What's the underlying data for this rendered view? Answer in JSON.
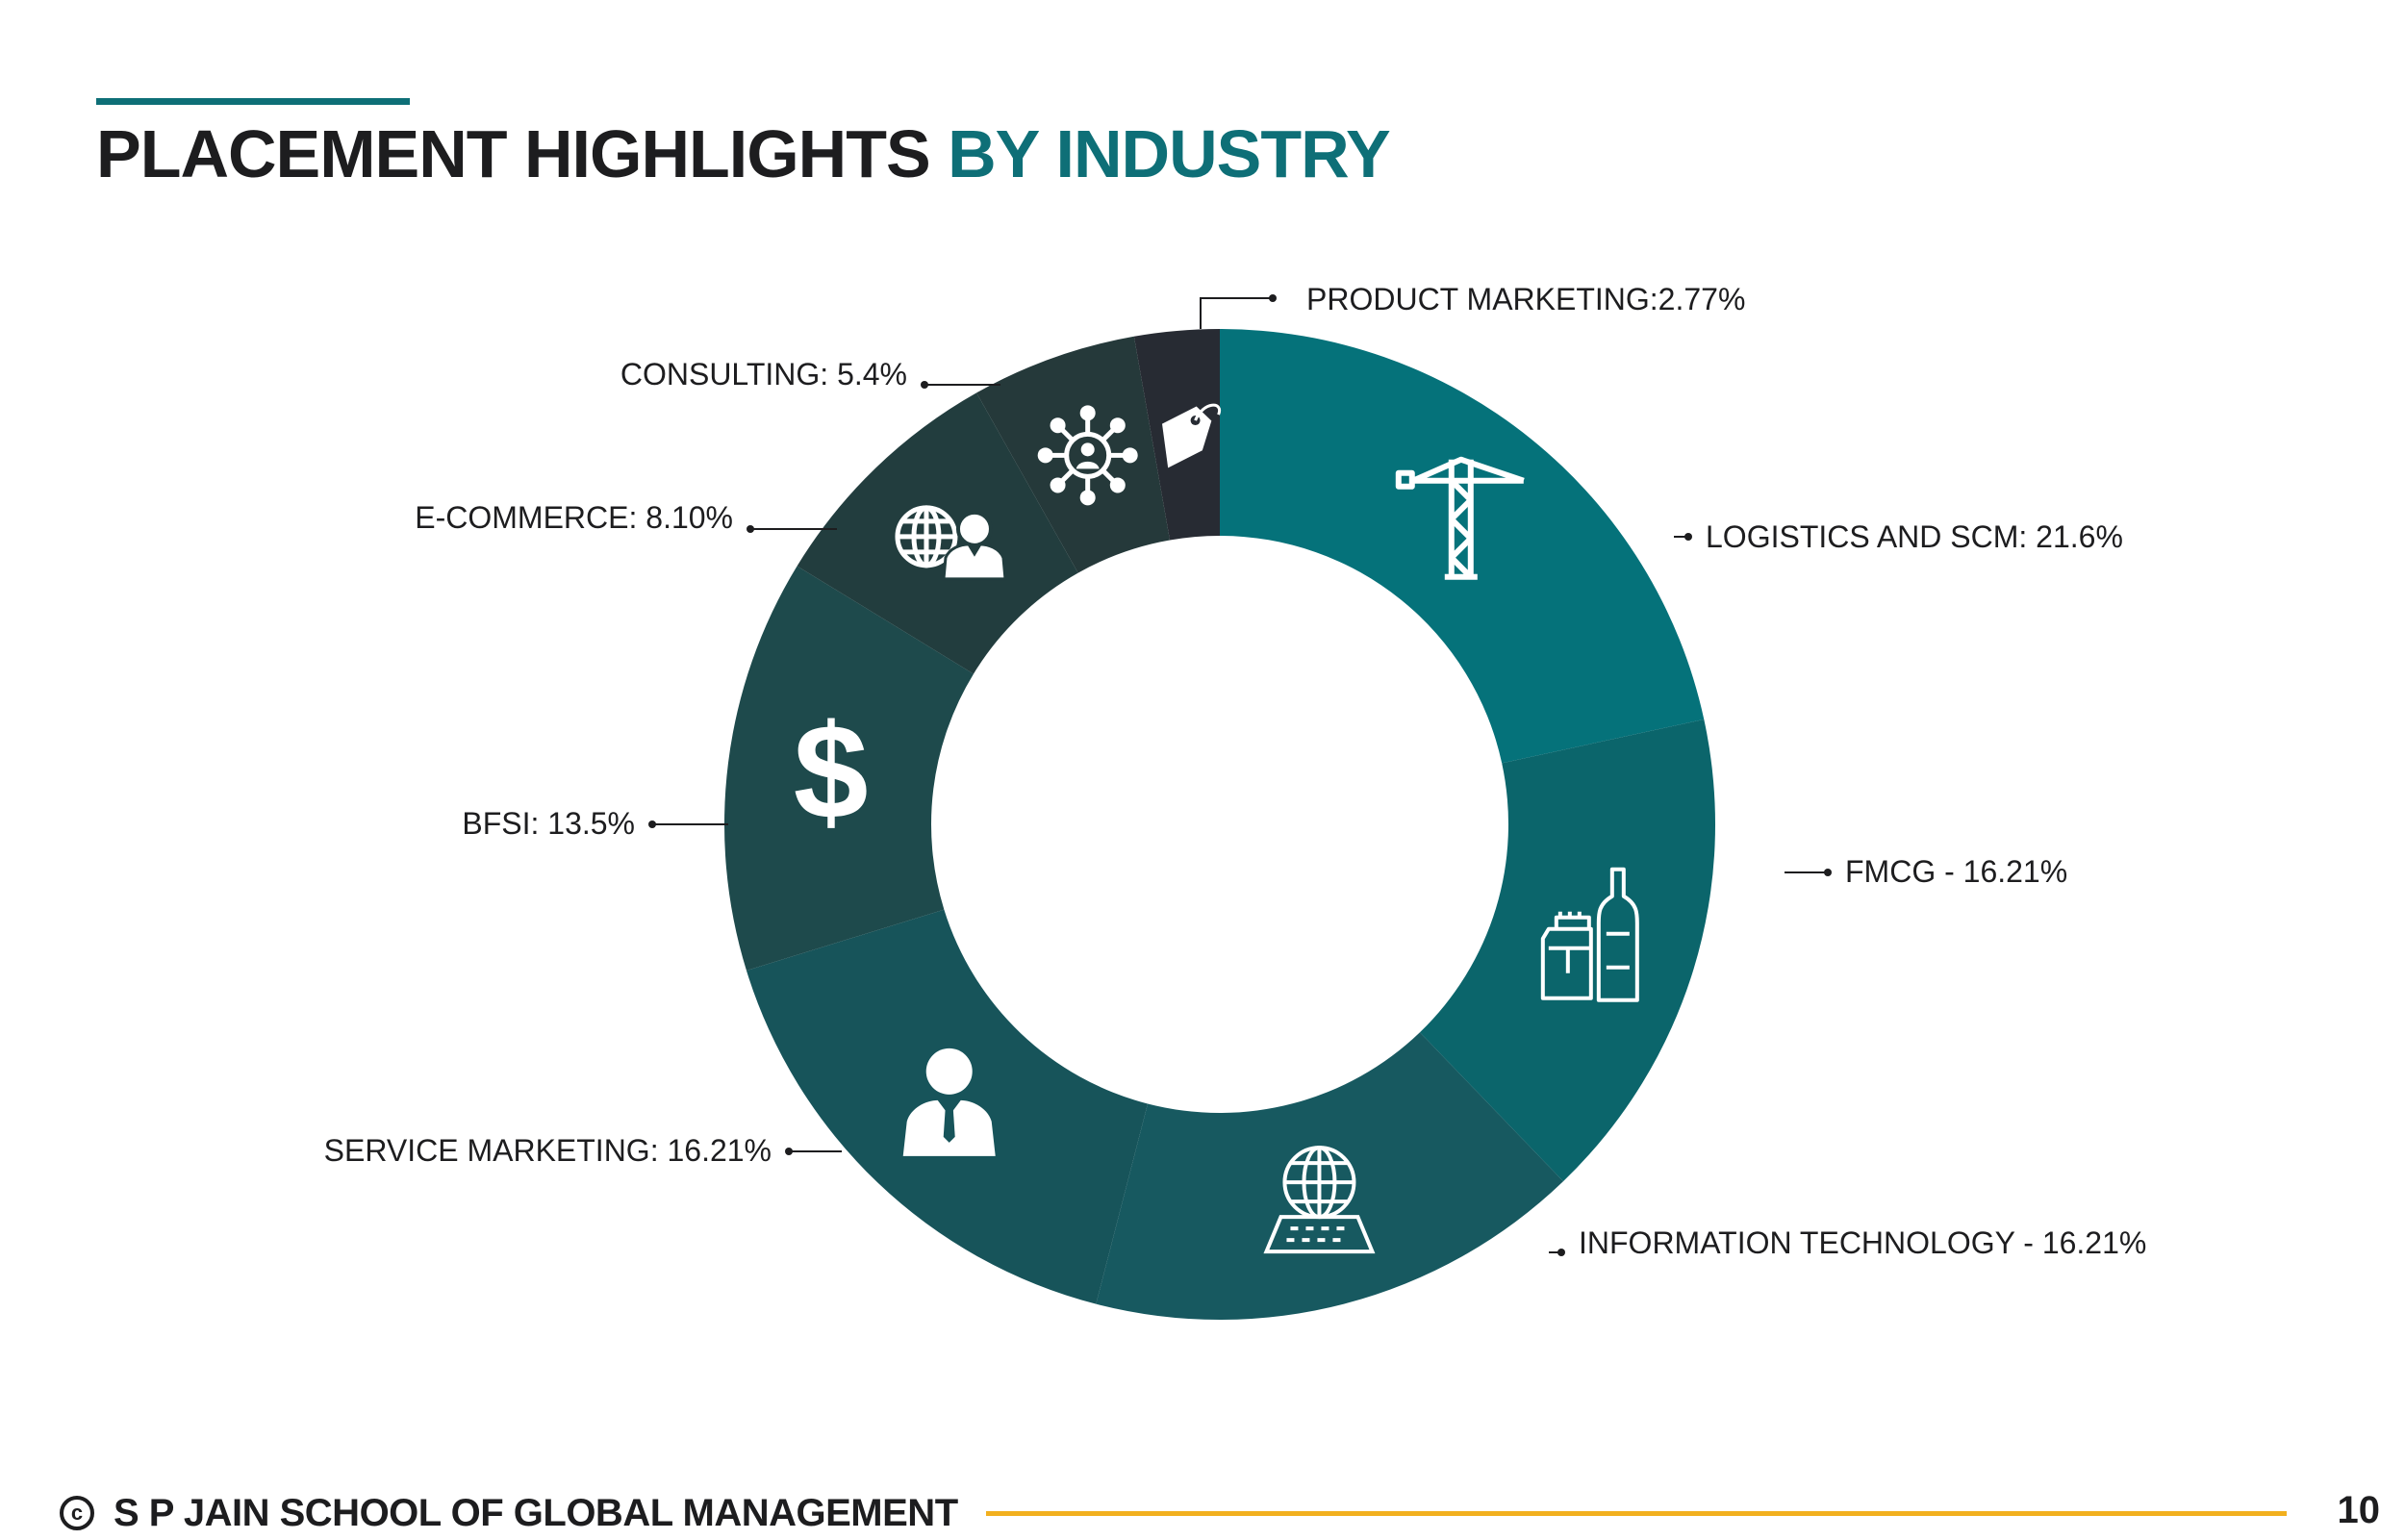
{
  "header": {
    "title_main": "PLACEMENT HIGHLIGHTS",
    "title_accent": "BY INDUSTRY"
  },
  "colors": {
    "accent": "#0e6f77",
    "footer_rule": "#f2b01e",
    "text": "#1d1d1f"
  },
  "chart_data": {
    "type": "pie",
    "style": "donut",
    "title": "",
    "slices": [
      {
        "label": "LOGISTICS AND SCM: 21.6%",
        "value": 21.6,
        "color": "#05727a",
        "icon": "crane-icon"
      },
      {
        "label": "FMCG - 16.21%",
        "value": 16.21,
        "color": "#0b656b",
        "icon": "grocery-bottle-icon"
      },
      {
        "label": "INFORMATION TECHNOLOGY - 16.21%",
        "value": 16.21,
        "color": "#175960",
        "icon": "laptop-globe-icon"
      },
      {
        "label": "SERVICE MARKETING: 16.21%",
        "value": 16.21,
        "color": "#17545a",
        "icon": "businessman-icon"
      },
      {
        "label": "BFSI: 13.5%",
        "value": 13.5,
        "color": "#1e4a4c",
        "icon": "dollar-icon"
      },
      {
        "label": "E-COMMERCE: 8.10%",
        "value": 8.1,
        "color": "#223d3e",
        "icon": "globe-person-icon"
      },
      {
        "label": "CONSULTING: 5.4%",
        "value": 5.4,
        "color": "#25393a",
        "icon": "network-people-icon"
      },
      {
        "label": "PRODUCT MARKETING:2.77%",
        "value": 2.77,
        "color": "#272b33",
        "icon": "price-tag-icon"
      }
    ]
  },
  "footer": {
    "copyright_symbol": "c",
    "school_name": "S P JAIN SCHOOL OF GLOBAL MANAGEMENT",
    "page_number": "10"
  }
}
